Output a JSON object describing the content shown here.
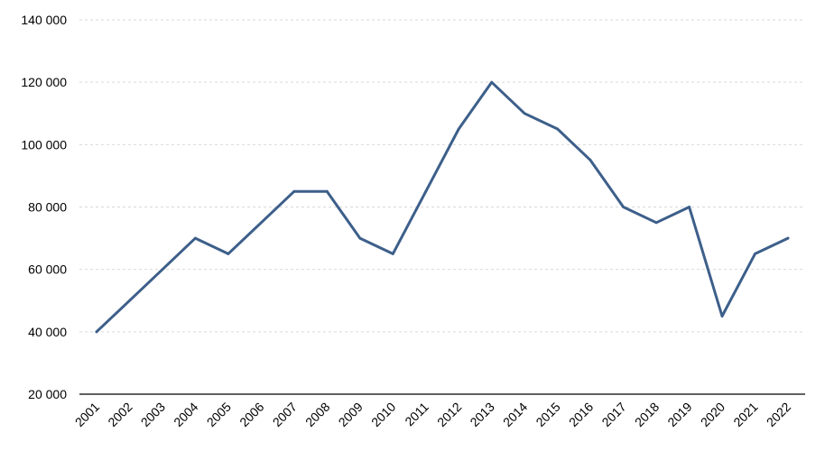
{
  "chart_data": {
    "type": "line",
    "title": "",
    "xlabel": "",
    "ylabel": "",
    "categories": [
      "2001",
      "2002",
      "2003",
      "2004",
      "2005",
      "2006",
      "2007",
      "2008",
      "2009",
      "2010",
      "2011",
      "2012",
      "2013",
      "2014",
      "2015",
      "2016",
      "2017",
      "2018",
      "2019",
      "2020",
      "2021",
      "2022"
    ],
    "series": [
      {
        "values": [
          40000,
          50000,
          60000,
          70000,
          65000,
          75000,
          85000,
          85000,
          70000,
          65000,
          85000,
          105000,
          120000,
          110000,
          105000,
          95000,
          80000,
          75000,
          80000,
          45000,
          65000,
          70000
        ]
      }
    ],
    "ylim": [
      20000,
      140000
    ],
    "yticks": [
      20000,
      40000,
      60000,
      80000,
      100000,
      120000,
      140000
    ],
    "ytick_labels": [
      "20 000",
      "40 000",
      "60 000",
      "80 000",
      "100 000",
      "120 000",
      "140 000"
    ],
    "grid": true,
    "legend": "none",
    "colors": {
      "line": "#3d5f8a",
      "grid": "#d9d9d9",
      "axis": "#000000"
    }
  }
}
